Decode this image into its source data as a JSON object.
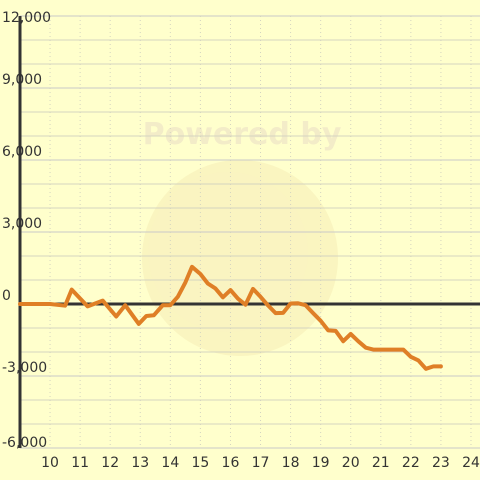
{
  "watermark": {
    "text": "Powered by"
  },
  "colors": {
    "background": "#ffffcc",
    "line": "#df7f26",
    "axis": "#333333",
    "grid_major": "#c9c9c9",
    "grid_minor": "#d4d4c0",
    "watermark": "#f3ecc8"
  },
  "chart_data": {
    "type": "line",
    "title": "",
    "xlabel": "",
    "ylabel": "",
    "xlim": [
      9,
      24.3
    ],
    "ylim": [
      -6000,
      12000
    ],
    "grid": true,
    "legend": "none",
    "x_ticks": [
      10,
      11,
      12,
      13,
      14,
      15,
      16,
      17,
      18,
      19,
      20,
      21,
      22,
      23,
      24
    ],
    "x_tick_labels": [
      "10",
      "11",
      "12",
      "13",
      "14",
      "15",
      "16",
      "17",
      "18",
      "19",
      "20",
      "21",
      "22",
      "23",
      "24"
    ],
    "y_ticks": [
      -6000,
      -3000,
      0,
      3000,
      6000,
      9000,
      12000
    ],
    "y_tick_labels": [
      "-6,000",
      "-3,000",
      "0",
      "3,000",
      "6,000",
      "9,000",
      "12,000"
    ],
    "series": [
      {
        "x": [
          9,
          9.5,
          10,
          10.5,
          10.72,
          11.25,
          11.75,
          12.2,
          12.5,
          12.95,
          13.2,
          13.45,
          13.75,
          14.0,
          14.25,
          14.5,
          14.72,
          15.0,
          15.25,
          15.5,
          15.75,
          16.0,
          16.25,
          16.5,
          16.75,
          17.0,
          17.25,
          17.5,
          17.75,
          18.0,
          18.25,
          18.5,
          18.75,
          19.0,
          19.25,
          19.5,
          19.75,
          20.0,
          20.25,
          20.5,
          20.75,
          21.0,
          21.25,
          21.5,
          21.75,
          22.0,
          22.25,
          22.5,
          22.75,
          23.0
        ],
        "y": [
          0,
          0,
          0,
          -70,
          600,
          -100,
          140,
          -520,
          -50,
          -830,
          -500,
          -470,
          -50,
          -50,
          300,
          900,
          1550,
          1250,
          850,
          650,
          280,
          580,
          220,
          -30,
          630,
          300,
          -60,
          -380,
          -370,
          20,
          30,
          -50,
          -380,
          -700,
          -1100,
          -1120,
          -1550,
          -1250,
          -1550,
          -1820,
          -1900,
          -1900,
          -1900,
          -1900,
          -1900,
          -2200,
          -2350,
          -2700,
          -2600,
          -2600
        ]
      }
    ]
  }
}
